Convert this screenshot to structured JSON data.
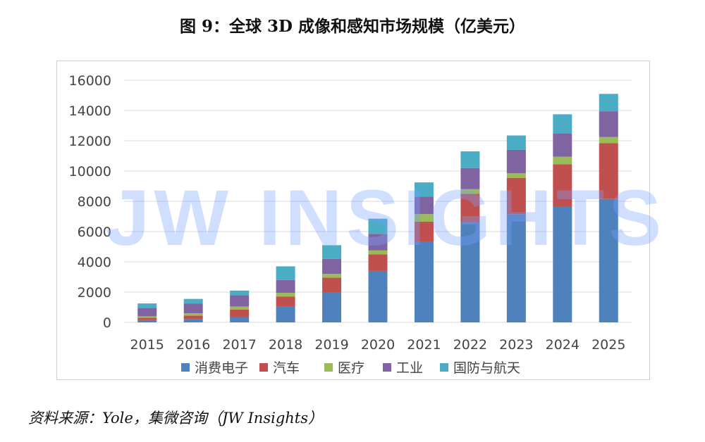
{
  "title": "图 9：全球 3D 成像和感知市场规模（亿美元）",
  "source": "资料来源：Yole，集微咨询（JW Insights）",
  "watermark": "JW INSIGHTS",
  "chart_data": {
    "type": "bar",
    "stacked": true,
    "categories": [
      "2015",
      "2016",
      "2017",
      "2018",
      "2019",
      "2020",
      "2021",
      "2022",
      "2023",
      "2024",
      "2025"
    ],
    "ylim": [
      0,
      16000
    ],
    "yticks": [
      0,
      2000,
      4000,
      6000,
      8000,
      10000,
      12000,
      14000,
      16000
    ],
    "grid": true,
    "legend_position": "bottom",
    "series": [
      {
        "name": "消费电子",
        "color": "#4f81bd",
        "values": [
          150,
          200,
          350,
          1050,
          2000,
          3400,
          5350,
          6600,
          7150,
          7650,
          8150
        ]
      },
      {
        "name": "汽车",
        "color": "#c0504d",
        "values": [
          150,
          250,
          500,
          650,
          950,
          1100,
          1300,
          1900,
          2400,
          2800,
          3700
        ]
      },
      {
        "name": "医疗",
        "color": "#9bbb59",
        "values": [
          100,
          150,
          200,
          250,
          250,
          250,
          500,
          300,
          300,
          500,
          400
        ]
      },
      {
        "name": "工业",
        "color": "#8064a2",
        "values": [
          550,
          650,
          750,
          850,
          1000,
          1100,
          1150,
          1400,
          1550,
          1550,
          1700
        ]
      },
      {
        "name": "国防与航天",
        "color": "#4bacc6",
        "values": [
          300,
          300,
          300,
          900,
          900,
          1000,
          950,
          1100,
          950,
          1250,
          1150
        ]
      }
    ]
  }
}
